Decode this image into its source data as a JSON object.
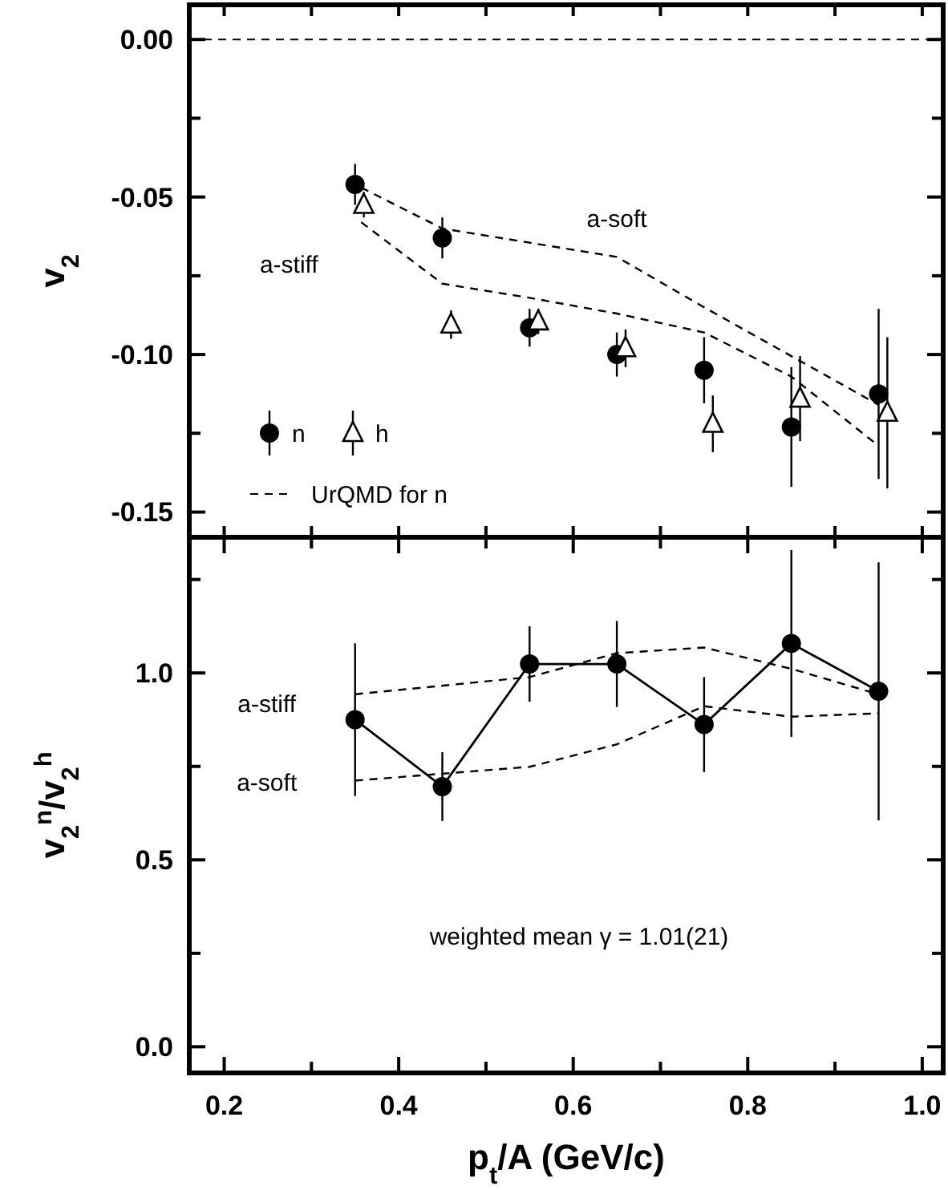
{
  "chart_data": [
    {
      "type": "scatter",
      "ylabel": "v$_{2}$",
      "xlim": [
        0.16,
        1.024
      ],
      "ylim": [
        -0.158,
        0.011
      ],
      "xticks": [
        {
          "value": 0.2,
          "label": null
        },
        {
          "value": 0.3,
          "label": null
        },
        {
          "value": 0.4,
          "label": null
        },
        {
          "value": 0.5,
          "label": null
        },
        {
          "value": 0.6,
          "label": null
        },
        {
          "value": 0.7,
          "label": null
        },
        {
          "value": 0.8,
          "label": null
        },
        {
          "value": 0.9,
          "label": null
        },
        {
          "value": 1.0,
          "label": null
        }
      ],
      "yticks": [
        {
          "value": 0,
          "label": "0.00"
        },
        {
          "value": -0.025,
          "label": null
        },
        {
          "value": -0.05,
          "label": "-0.05"
        },
        {
          "value": -0.075,
          "label": null
        },
        {
          "value": -0.1,
          "label": "-0.10"
        },
        {
          "value": -0.125,
          "label": null
        },
        {
          "value": -0.15,
          "label": "-0.15"
        }
      ],
      "tick_labels": "y",
      "legend": "bottom left",
      "legend_title": "UrQMD for n",
      "ref_lines": [
        {
          "axis": "y",
          "value": 0,
          "line_style": "dashed"
        }
      ],
      "series": [
        {
          "name": "n",
          "marker": "circle",
          "color": "#000000",
          "x": [
            0.35,
            0.45,
            0.55,
            0.65,
            0.75,
            0.85,
            0.95
          ],
          "values": [
            -0.046,
            -0.063,
            -0.0915,
            -0.1,
            -0.105,
            -0.123,
            -0.1125
          ],
          "errors": [
            0.0065,
            0.0065,
            0.006,
            0.007,
            0.0105,
            0.019,
            0.027
          ]
        },
        {
          "name": "h",
          "marker": "triangle",
          "color": "#000000",
          "x": [
            0.36,
            0.46,
            0.56,
            0.66,
            0.76,
            0.86,
            0.96
          ],
          "values": [
            -0.0525,
            -0.0905,
            -0.0895,
            -0.098,
            -0.122,
            -0.114,
            -0.1185
          ],
          "errors": [
            0.004,
            0.0045,
            0.004,
            0.006,
            0.009,
            0.0135,
            0.024
          ]
        },
        {
          "name": "a-soft",
          "type": "line",
          "marker": "none",
          "line_style": "dashed",
          "color": "#000000",
          "x": [
            0.357,
            0.45,
            0.65,
            0.75,
            0.85,
            0.95
          ],
          "values": [
            -0.047,
            -0.06,
            -0.069,
            -0.085,
            -0.1005,
            -0.116
          ]
        },
        {
          "name": "a-stiff",
          "type": "line",
          "marker": "none",
          "line_style": "dashed",
          "color": "#000000",
          "x": [
            0.357,
            0.45,
            0.55,
            0.65,
            0.75,
            0.85,
            0.95
          ],
          "values": [
            -0.058,
            -0.0775,
            -0.082,
            -0.087,
            -0.093,
            -0.107,
            -0.129
          ]
        }
      ]
    },
    {
      "type": "line",
      "ylabel": "v$_{2}$$^{n}$/v$_{2}$$^{h}$",
      "xlabel": "p$_{t}$/A (GeV/c)",
      "xlim": [
        0.16,
        1.024
      ],
      "ylim": [
        -0.07,
        1.363
      ],
      "xticks": [
        {
          "value": 0.2,
          "label": "0.2"
        },
        {
          "value": 0.3,
          "label": null
        },
        {
          "value": 0.4,
          "label": "0.4"
        },
        {
          "value": 0.5,
          "label": null
        },
        {
          "value": 0.6,
          "label": "0.6"
        },
        {
          "value": 0.7,
          "label": null
        },
        {
          "value": 0.8,
          "label": "0.8"
        },
        {
          "value": 0.9,
          "label": null
        },
        {
          "value": 1.0,
          "label": "1.0"
        }
      ],
      "yticks": [
        {
          "value": 0,
          "label": "0.0"
        },
        {
          "value": 0.25,
          "label": null
        },
        {
          "value": 0.5,
          "label": "0.5"
        },
        {
          "value": 0.75,
          "label": null
        },
        {
          "value": 1.0,
          "label": "1.0"
        },
        {
          "value": 1.25,
          "label": null
        }
      ],
      "series": [
        {
          "marker": "circle",
          "line_style": "solid",
          "color": "#000000",
          "x": [
            0.35,
            0.45,
            0.55,
            0.65,
            0.75,
            0.85,
            0.95
          ],
          "values": [
            0.875,
            0.696,
            1.024,
            1.024,
            0.862,
            1.079,
            0.951
          ],
          "errors": [
            0.204,
            0.092,
            0.101,
            0.115,
            0.127,
            0.25,
            0.345
          ]
        },
        {
          "name": "a-stiff",
          "marker": "none",
          "line_style": "dashed",
          "color": "#000000",
          "x": [
            0.35,
            0.55,
            0.65,
            0.75,
            0.85,
            0.95
          ],
          "values": [
            0.943,
            0.989,
            1.053,
            1.068,
            1.011,
            0.943
          ]
        },
        {
          "name": "a-soft",
          "marker": "none",
          "line_style": "dashed",
          "color": "#000000",
          "x": [
            0.35,
            0.55,
            0.65,
            0.75,
            0.85,
            0.95
          ],
          "values": [
            0.712,
            0.749,
            0.809,
            0.911,
            0.883,
            0.892
          ]
        }
      ],
      "annotations": [
        "weighted mean γ = 1.01(21)"
      ]
    }
  ]
}
